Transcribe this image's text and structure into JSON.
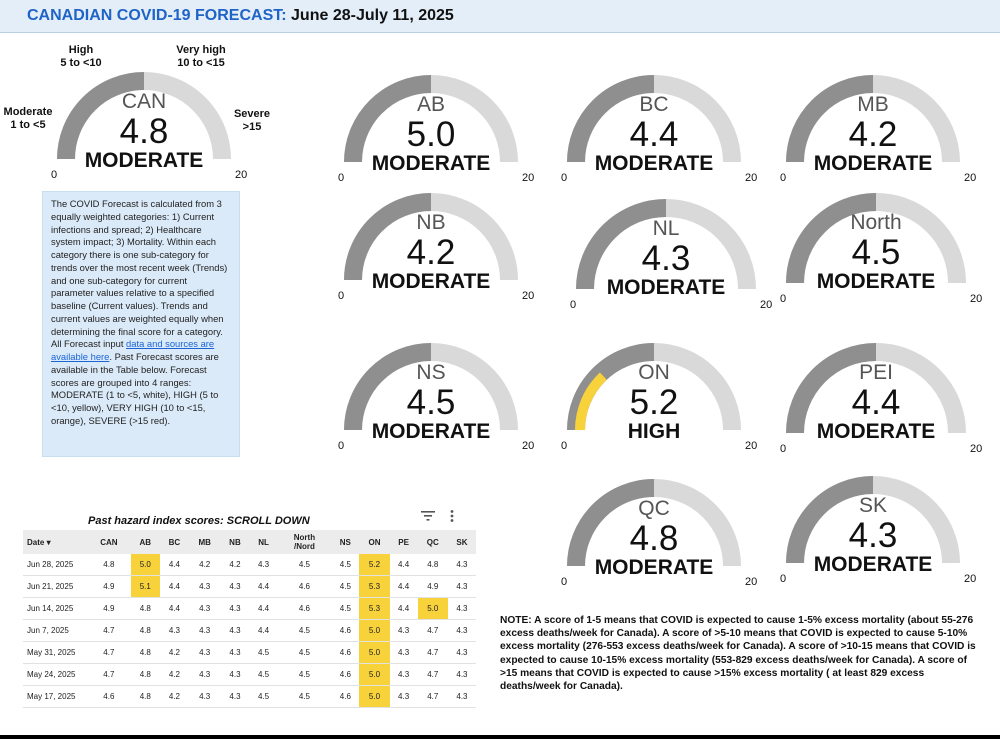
{
  "header": {
    "title_prefix": "CANADIAN COVID-19 FORECAST:",
    "title_dates": "June 28-July 11, 2025"
  },
  "gauge_scale": {
    "min": "0",
    "max": "20",
    "min_value": 0,
    "max_value": 20
  },
  "colors": {
    "arc_background": "#d9d9d9",
    "arc_base": "#8f8f8f",
    "high_fill": "#f7d23b",
    "title_blue": "#1f63c6",
    "info_box": "#dbeaf8",
    "row_highlight": "#f7d23b"
  },
  "range_labels": {
    "moderate": {
      "line1": "Moderate",
      "line2": "1 to <5"
    },
    "high": {
      "line1": "High",
      "line2": "5 to <10"
    },
    "very_high": {
      "line1": "Very high",
      "line2": "10 to <15"
    },
    "severe": {
      "line1": "Severe",
      "line2": ">15"
    }
  },
  "gauges": {
    "can": {
      "name": "CAN",
      "value": "4.8",
      "level": "MODERATE"
    },
    "ab": {
      "name": "AB",
      "value": "5.0",
      "level": "MODERATE"
    },
    "bc": {
      "name": "BC",
      "value": "4.4",
      "level": "MODERATE"
    },
    "mb": {
      "name": "MB",
      "value": "4.2",
      "level": "MODERATE"
    },
    "nb": {
      "name": "NB",
      "value": "4.2",
      "level": "MODERATE"
    },
    "nl": {
      "name": "NL",
      "value": "4.3",
      "level": "MODERATE"
    },
    "north": {
      "name": "North",
      "value": "4.5",
      "level": "MODERATE"
    },
    "ns": {
      "name": "NS",
      "value": "4.5",
      "level": "MODERATE"
    },
    "on": {
      "name": "ON",
      "value": "5.2",
      "level": "HIGH"
    },
    "pei": {
      "name": "PEI",
      "value": "4.4",
      "level": "MODERATE"
    },
    "qc": {
      "name": "QC",
      "value": "4.8",
      "level": "MODERATE"
    },
    "sk": {
      "name": "SK",
      "value": "4.3",
      "level": "MODERATE"
    }
  },
  "info": {
    "text_before_link": "The COVID Forecast is calculated from 3 equally weighted categories: 1) Current infections and spread; 2) Healthcare system impact; 3) Mortality. Within each category there is one sub-category for trends over the most recent week (Trends) and one sub-category for current parameter values relative to a specified baseline (Current values). Trends and current values are weighted equally when determining the final score for a category. All Forecast input ",
    "link_text": "data and sources are available here",
    "text_after_link": ". Past Forecast scores are available in the Table below. Forecast scores are grouped into 4 ranges: MODERATE (1 to <5, white), HIGH (5 to <10, yellow), VERY HIGH (10 to <15, orange), SEVERE (>15 red)."
  },
  "table": {
    "title": "Past hazard index scores: SCROLL DOWN",
    "sort_indicator": "▾",
    "columns": [
      "Date",
      "CAN",
      "AB",
      "BC",
      "MB",
      "NB",
      "NL",
      "North\n/Nord",
      "NS",
      "ON",
      "PE",
      "QC",
      "SK"
    ],
    "rows": [
      [
        "Jun 28, 2025",
        "4.8",
        "5.0",
        "4.4",
        "4.2",
        "4.2",
        "4.3",
        "4.5",
        "4.5",
        "5.2",
        "4.4",
        "4.8",
        "4.3"
      ],
      [
        "Jun 21, 2025",
        "4.9",
        "5.1",
        "4.4",
        "4.3",
        "4.3",
        "4.4",
        "4.6",
        "4.5",
        "5.3",
        "4.4",
        "4.9",
        "4.3"
      ],
      [
        "Jun 14, 2025",
        "4.9",
        "4.8",
        "4.4",
        "4.3",
        "4.3",
        "4.4",
        "4.6",
        "4.5",
        "5.3",
        "4.4",
        "5.0",
        "4.3"
      ],
      [
        "Jun 7, 2025",
        "4.7",
        "4.8",
        "4.3",
        "4.3",
        "4.3",
        "4.4",
        "4.5",
        "4.6",
        "5.0",
        "4.3",
        "4.7",
        "4.3"
      ],
      [
        "May 31, 2025",
        "4.7",
        "4.8",
        "4.2",
        "4.3",
        "4.3",
        "4.5",
        "4.5",
        "4.6",
        "5.0",
        "4.3",
        "4.7",
        "4.3"
      ],
      [
        "May 24, 2025",
        "4.7",
        "4.8",
        "4.2",
        "4.3",
        "4.3",
        "4.5",
        "4.5",
        "4.6",
        "5.0",
        "4.3",
        "4.7",
        "4.3"
      ],
      [
        "May 17, 2025",
        "4.6",
        "4.8",
        "4.2",
        "4.3",
        "4.3",
        "4.5",
        "4.5",
        "4.6",
        "5.0",
        "4.3",
        "4.7",
        "4.3"
      ]
    ]
  },
  "note": "NOTE: A score of 1-5 means that COVID is expected to cause 1-5% excess mortality (about 55-276 excess deaths/week for Canada). A score of >5-10 means that COVID is expected to cause 5-10% excess mortality (276-553 excess deaths/week for Canada). A score of >10-15 means that COVID is expected to cause 10-15% excess mortality (553-829 excess deaths/week for Canada). A score of >15 means that COVID is expected to cause >15% excess mortality ( at least 829 excess deaths/week for Canada)."
}
